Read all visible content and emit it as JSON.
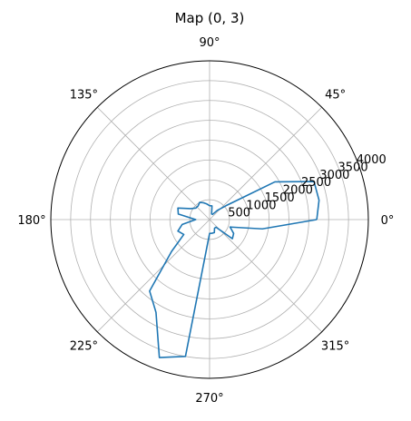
{
  "chart_data": {
    "type": "line",
    "projection": "polar",
    "title": "Map (0, 3)",
    "theta_unit": "degrees",
    "theta_ticks": [
      0,
      45,
      90,
      135,
      180,
      225,
      270,
      315
    ],
    "theta_tick_labels": [
      "0°",
      "45°",
      "90°",
      "135°",
      "180°",
      "225°",
      "270°",
      "315°"
    ],
    "r_ticks": [
      500,
      1000,
      1500,
      2000,
      2500,
      3000,
      3500,
      4000
    ],
    "r_tick_labels": [
      "500",
      "1000",
      "1500",
      "2000",
      "2500",
      "3000",
      "3500",
      "4000"
    ],
    "r_tick_label_angle": 22.5,
    "rlim": [
      0,
      4000
    ],
    "grid": true,
    "series": [
      {
        "color": "#1f77b4",
        "points": [
          {
            "theta": 0,
            "r": 2700
          },
          {
            "theta": 10,
            "r": 2800
          },
          {
            "theta": 20,
            "r": 2800
          },
          {
            "theta": 30,
            "r": 1900
          },
          {
            "theta": 40,
            "r": 550
          },
          {
            "theta": 50,
            "r": 300
          },
          {
            "theta": 60,
            "r": 150
          },
          {
            "theta": 70,
            "r": 150
          },
          {
            "theta": 80,
            "r": 350
          },
          {
            "theta": 90,
            "r": 350
          },
          {
            "theta": 100,
            "r": 400
          },
          {
            "theta": 110,
            "r": 450
          },
          {
            "theta": 120,
            "r": 500
          },
          {
            "theta": 130,
            "r": 450
          },
          {
            "theta": 140,
            "r": 450
          },
          {
            "theta": 150,
            "r": 550
          },
          {
            "theta": 160,
            "r": 850
          },
          {
            "theta": 170,
            "r": 800
          },
          {
            "theta": 180,
            "r": 350
          },
          {
            "theta": 190,
            "r": 700
          },
          {
            "theta": 200,
            "r": 850
          },
          {
            "theta": 210,
            "r": 750
          },
          {
            "theta": 220,
            "r": 1250
          },
          {
            "theta": 230,
            "r": 2350
          },
          {
            "theta": 240,
            "r": 2700
          },
          {
            "theta": 250,
            "r": 3700
          },
          {
            "theta": 260,
            "r": 3500
          },
          {
            "theta": 270,
            "r": 350
          },
          {
            "theta": 280,
            "r": 350
          },
          {
            "theta": 290,
            "r": 350
          },
          {
            "theta": 300,
            "r": 250
          },
          {
            "theta": 310,
            "r": 250
          },
          {
            "theta": 320,
            "r": 750
          },
          {
            "theta": 330,
            "r": 700
          },
          {
            "theta": 340,
            "r": 550
          },
          {
            "theta": 350,
            "r": 1350
          },
          {
            "theta": 360,
            "r": 2700
          }
        ]
      }
    ]
  }
}
